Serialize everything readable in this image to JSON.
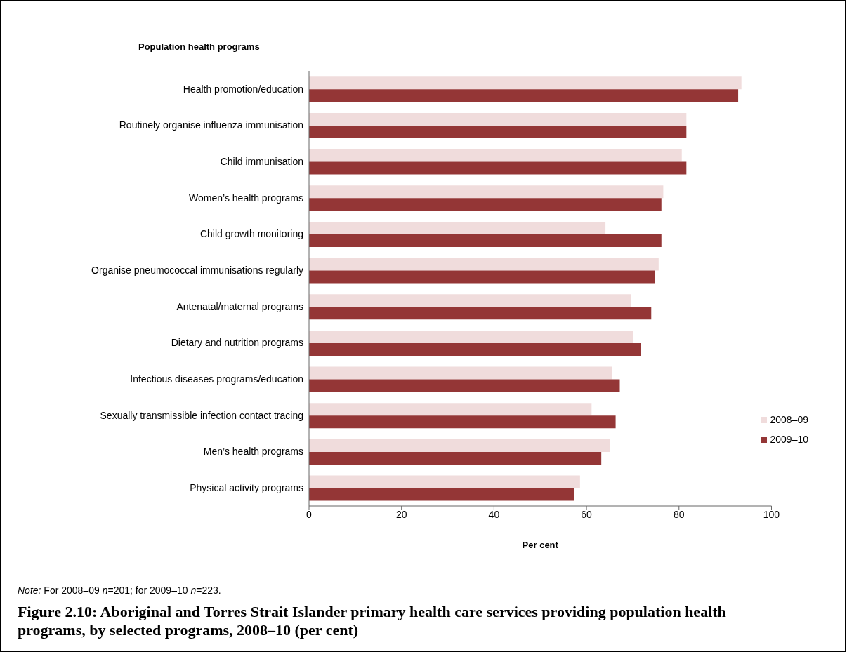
{
  "chart_data": {
    "type": "bar",
    "orientation": "horizontal",
    "title": "Figure 2.10: Aboriginal and Torres Strait Islander primary health care services providing population health programs, by selected programs, 2008–10 (per cent)",
    "xlabel": "Per cent",
    "ylabel": "Population health programs",
    "categories": [
      "Health promotion/education",
      "Routinely organise influenza immunisation",
      "Child immunisation",
      "Women’s health programs",
      "Child growth monitoring",
      "Organise pneumococcal immunisations regularly",
      "Antenatal/maternal programs",
      "Dietary and nutrition programs",
      "Infectious diseases programs/education",
      "Sexually transmissible infection contact tracing",
      "Men’s health programs",
      "Physical activity programs"
    ],
    "series": [
      {
        "name": "2008–09",
        "color": "#f0dcdc",
        "values": [
          93.5,
          81.6,
          80.6,
          76.6,
          64.1,
          75.6,
          69.6,
          70.1,
          65.6,
          61.1,
          65.1,
          58.6
        ]
      },
      {
        "name": "2009–10",
        "color": "#943636",
        "values": [
          92.8,
          81.6,
          81.6,
          76.2,
          76.2,
          74.8,
          74.0,
          71.7,
          67.2,
          66.3,
          63.2,
          57.3
        ]
      }
    ],
    "xlim": [
      0,
      100
    ],
    "xticks": [
      0,
      20,
      40,
      60,
      80,
      100
    ],
    "legend": "bottom right",
    "annotations": [
      "Note: For 2008–09 n=201; for 2009–10 n=223."
    ]
  }
}
